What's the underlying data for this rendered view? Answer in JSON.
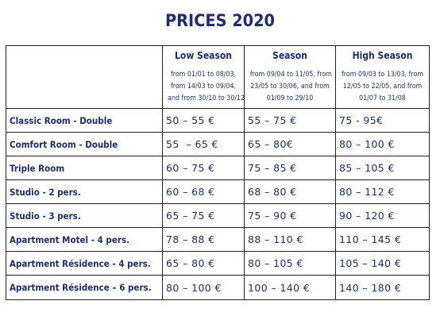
{
  "title": "PRICES 2020",
  "seasons": [
    {
      "name": "Low Season",
      "dates": [
        "from 01/01 to 08/03,",
        "from 14/03 to 09/04,",
        "and from 30/10 to 30/12"
      ]
    },
    {
      "name": "Season",
      "dates": [
        "from 09/04 to 11/05, from",
        "23/05 to 30/06, and from",
        "01/09 to 29/10"
      ]
    },
    {
      "name": "High Season",
      "dates": [
        "from 09/03 to 13/03, from",
        "12/05 to 22/05, and from",
        "01/07 to 31/08"
      ]
    }
  ],
  "rows": [
    {
      "room": "Classic Room -  Double",
      "low": "50 – 55 €",
      "season": "55 – 75 €",
      "high": "75 - 95€"
    },
    {
      "room": "Comfort Room -  Double",
      "low": "55  – 65 €",
      "season": "65 – 80€",
      "high": "80 – 100 €"
    },
    {
      "room": "Triple Room",
      "low": "60 – 75 €",
      "season": "75 – 85 €",
      "high": "85 – 105 €"
    },
    {
      "room": "Studio - 2 pers.",
      "low": "60 – 68 €",
      "season": "68 – 80 €",
      "high": "80 – 112 €"
    },
    {
      "room": "Studio - 3 pers.",
      "low": "65 – 75 €",
      "season": "75 – 90 €",
      "high": "90 – 120 €"
    },
    {
      "room": "Apartment Motel - 4 pers.",
      "low": "78 – 88 €",
      "season": "88 – 110 €",
      "high": "110 – 145 €"
    },
    {
      "room": "Apartment Résidence - 4 pers.",
      "low": "65 – 80 €",
      "season": "80 – 105 €",
      "high": "105 – 140 €"
    },
    {
      "room": "Apartment Résidence – 6 pers.",
      "low": "80 – 100 €",
      "season": "100 – 140 €",
      "high": "140 – 180 €"
    }
  ]
}
